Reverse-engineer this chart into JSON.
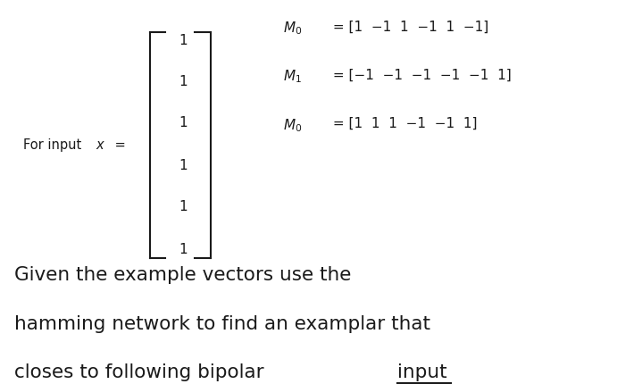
{
  "bg_color": "#ffffff",
  "top_math_lines": [
    {
      "sub": "0",
      "rest": " = [1  −1  1  −1  1  −1]"
    },
    {
      "sub": "1",
      "rest": " = [−1  −1  −1  −1  −1  1]"
    },
    {
      "sub": "0",
      "rest": " = [1  1  1  −1  −1  1]"
    }
  ],
  "matrix_values": [
    "1",
    "1",
    "1",
    "1",
    "1",
    "1"
  ],
  "bottom_text_line1": "Given the example vectors use the",
  "bottom_text_line2": "hamming network to find an examplar that",
  "bottom_text_line3": "closes to following bipolar ",
  "bottom_text_underlined": "input",
  "fig_width": 7.19,
  "fig_height": 4.31,
  "dpi": 100
}
